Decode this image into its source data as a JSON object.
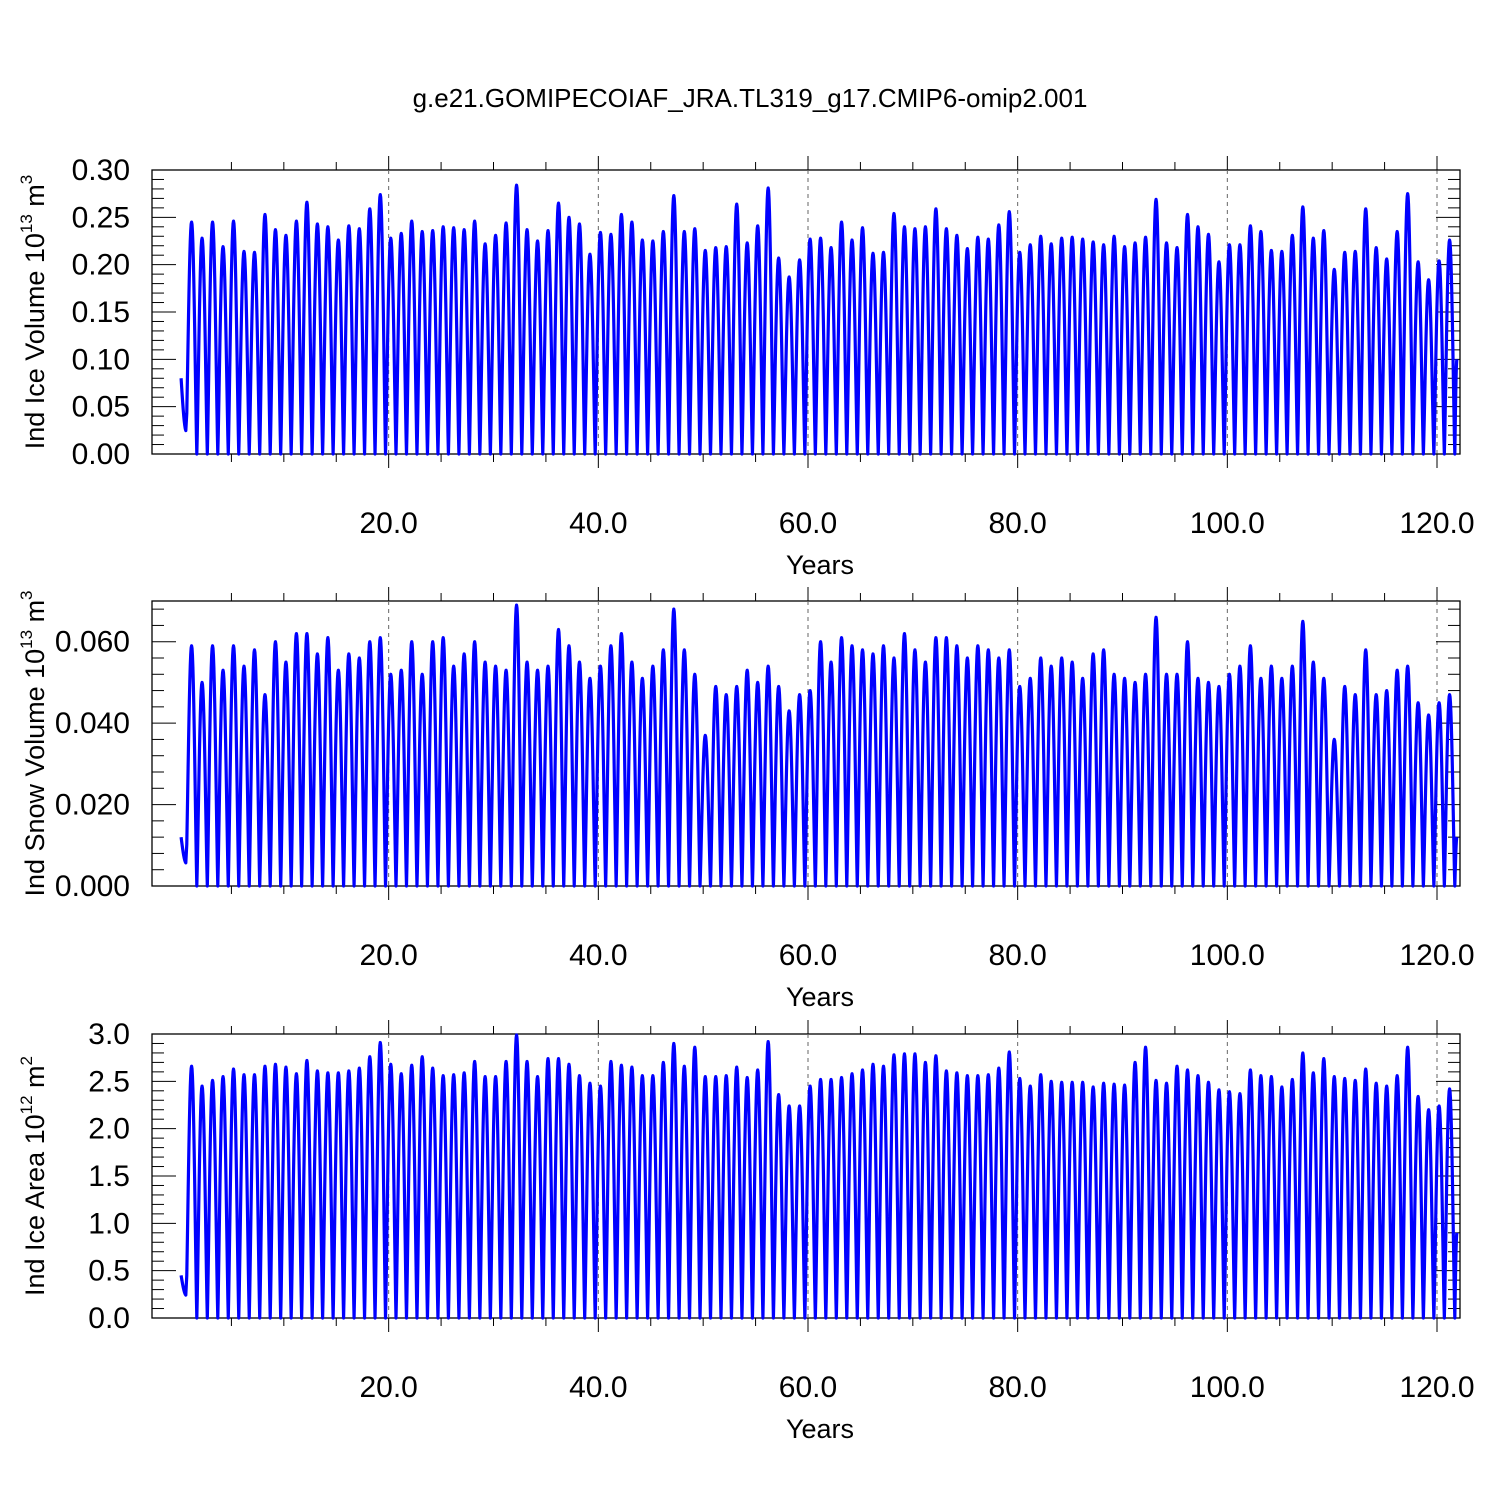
{
  "title": "g.e21.GOMIPECOIAF_JRA.TL319_g17.CMIP6-omip2.001",
  "line_color": "#0000ff",
  "chart_data": [
    {
      "type": "line",
      "title": "",
      "xlabel": "Years",
      "ylabel_main": "Ind Ice Volume 10",
      "ylabel_exp": "13",
      "ylabel_unit": " m",
      "ylabel_unit_exp": "3",
      "xlim": [
        0,
        122
      ],
      "ylim": [
        0,
        0.3
      ],
      "grid": "dashed vertical lines at major x ticks",
      "xticks": [
        20,
        40,
        60,
        80,
        100,
        120
      ],
      "xtick_labels": [
        "20.0",
        "40.0",
        "60.0",
        "80.0",
        "100.0",
        "120.0"
      ],
      "yticks": [
        0,
        0.05,
        0.1,
        0.15,
        0.2,
        0.25,
        0.3
      ],
      "ytick_labels": [
        "0.00",
        "0.05",
        "0.10",
        "0.15",
        "0.20",
        "0.25",
        "0.30"
      ],
      "series": [
        {
          "start_value": 0.08,
          "end_value": 0.1,
          "annual_minimum": 0.0,
          "annual_maxima": [
            0.245,
            0.228,
            0.245,
            0.219,
            0.246,
            0.214,
            0.213,
            0.253,
            0.237,
            0.231,
            0.246,
            0.266,
            0.243,
            0.24,
            0.226,
            0.241,
            0.238,
            0.259,
            0.274,
            0.228,
            0.233,
            0.246,
            0.235,
            0.236,
            0.24,
            0.239,
            0.237,
            0.246,
            0.222,
            0.231,
            0.244,
            0.284,
            0.237,
            0.225,
            0.236,
            0.265,
            0.25,
            0.243,
            0.211,
            0.234,
            0.232,
            0.253,
            0.245,
            0.226,
            0.225,
            0.235,
            0.273,
            0.235,
            0.238,
            0.215,
            0.218,
            0.219,
            0.264,
            0.223,
            0.241,
            0.281,
            0.207,
            0.187,
            0.205,
            0.227,
            0.228,
            0.218,
            0.245,
            0.226,
            0.239,
            0.212,
            0.213,
            0.254,
            0.24,
            0.238,
            0.24,
            0.259,
            0.238,
            0.231,
            0.217,
            0.229,
            0.227,
            0.242,
            0.256,
            0.213,
            0.221,
            0.23,
            0.222,
            0.228,
            0.229,
            0.227,
            0.224,
            0.221,
            0.23,
            0.219,
            0.223,
            0.229,
            0.269,
            0.223,
            0.218,
            0.253,
            0.24,
            0.232,
            0.203,
            0.221,
            0.221,
            0.241,
            0.235,
            0.215,
            0.214,
            0.231,
            0.261,
            0.228,
            0.236,
            0.195,
            0.213,
            0.214,
            0.259,
            0.218,
            0.206,
            0.235,
            0.275,
            0.203,
            0.184,
            0.204,
            0.226
          ]
        }
      ]
    },
    {
      "type": "line",
      "title": "",
      "xlabel": "Years",
      "ylabel_main": "Ind Snow Volume 10",
      "ylabel_exp": "13",
      "ylabel_unit": " m",
      "ylabel_unit_exp": "3",
      "xlim": [
        0,
        122
      ],
      "ylim": [
        0,
        0.07
      ],
      "grid": "dashed vertical lines at major x ticks",
      "xticks": [
        20,
        40,
        60,
        80,
        100,
        120
      ],
      "xtick_labels": [
        "20.0",
        "40.0",
        "60.0",
        "80.0",
        "100.0",
        "120.0"
      ],
      "yticks": [
        0,
        0.02,
        0.04,
        0.06
      ],
      "ytick_labels": [
        "0.000",
        "0.020",
        "0.040",
        "0.060"
      ],
      "series": [
        {
          "start_value": 0.012,
          "end_value": 0.012,
          "annual_minimum": 0.0,
          "annual_maxima": [
            0.059,
            0.05,
            0.059,
            0.053,
            0.059,
            0.054,
            0.058,
            0.047,
            0.06,
            0.055,
            0.062,
            0.062,
            0.057,
            0.061,
            0.053,
            0.057,
            0.056,
            0.06,
            0.061,
            0.052,
            0.053,
            0.06,
            0.052,
            0.06,
            0.061,
            0.054,
            0.057,
            0.06,
            0.055,
            0.054,
            0.053,
            0.069,
            0.055,
            0.053,
            0.054,
            0.063,
            0.059,
            0.055,
            0.051,
            0.054,
            0.059,
            0.062,
            0.055,
            0.051,
            0.054,
            0.058,
            0.068,
            0.058,
            0.052,
            0.037,
            0.049,
            0.047,
            0.049,
            0.053,
            0.05,
            0.054,
            0.049,
            0.043,
            0.047,
            0.048,
            0.06,
            0.055,
            0.061,
            0.059,
            0.058,
            0.057,
            0.059,
            0.056,
            0.062,
            0.058,
            0.055,
            0.061,
            0.061,
            0.059,
            0.056,
            0.059,
            0.058,
            0.056,
            0.058,
            0.049,
            0.051,
            0.056,
            0.054,
            0.056,
            0.055,
            0.051,
            0.057,
            0.058,
            0.052,
            0.051,
            0.05,
            0.052,
            0.066,
            0.052,
            0.052,
            0.06,
            0.051,
            0.05,
            0.049,
            0.052,
            0.054,
            0.059,
            0.051,
            0.054,
            0.051,
            0.054,
            0.065,
            0.055,
            0.051,
            0.036,
            0.049,
            0.047,
            0.058,
            0.047,
            0.048,
            0.053,
            0.054,
            0.045,
            0.042,
            0.045,
            0.047
          ]
        }
      ]
    },
    {
      "type": "line",
      "title": "",
      "xlabel": "Years",
      "ylabel_main": "Ind Ice Area 10",
      "ylabel_exp": "12",
      "ylabel_unit": " m",
      "ylabel_unit_exp": "2",
      "xlim": [
        0,
        122
      ],
      "ylim": [
        0,
        3.0
      ],
      "grid": "dashed vertical lines at major x ticks",
      "xticks": [
        20,
        40,
        60,
        80,
        100,
        120
      ],
      "xtick_labels": [
        "20.0",
        "40.0",
        "60.0",
        "80.0",
        "100.0",
        "120.0"
      ],
      "yticks": [
        0,
        0.5,
        1.0,
        1.5,
        2.0,
        2.5,
        3.0
      ],
      "ytick_labels": [
        "0.0",
        "0.5",
        "1.0",
        "1.5",
        "2.0",
        "2.5",
        "3.0"
      ],
      "series": [
        {
          "start_value": 0.45,
          "end_value": 0.9,
          "annual_minimum": 0.0,
          "annual_maxima": [
            2.66,
            2.45,
            2.51,
            2.55,
            2.63,
            2.57,
            2.57,
            2.66,
            2.68,
            2.65,
            2.58,
            2.72,
            2.61,
            2.59,
            2.59,
            2.61,
            2.64,
            2.76,
            2.91,
            2.68,
            2.58,
            2.67,
            2.76,
            2.64,
            2.56,
            2.57,
            2.59,
            2.71,
            2.55,
            2.55,
            2.71,
            2.99,
            2.71,
            2.55,
            2.74,
            2.74,
            2.68,
            2.56,
            2.48,
            2.45,
            2.71,
            2.67,
            2.65,
            2.56,
            2.56,
            2.7,
            2.9,
            2.66,
            2.86,
            2.55,
            2.55,
            2.56,
            2.65,
            2.54,
            2.62,
            2.92,
            2.36,
            2.24,
            2.24,
            2.45,
            2.52,
            2.52,
            2.54,
            2.58,
            2.62,
            2.68,
            2.66,
            2.78,
            2.79,
            2.79,
            2.7,
            2.77,
            2.61,
            2.59,
            2.56,
            2.56,
            2.57,
            2.64,
            2.81,
            2.53,
            2.45,
            2.57,
            2.5,
            2.49,
            2.49,
            2.49,
            2.44,
            2.48,
            2.47,
            2.46,
            2.7,
            2.86,
            2.51,
            2.48,
            2.66,
            2.62,
            2.56,
            2.49,
            2.41,
            2.39,
            2.37,
            2.62,
            2.56,
            2.55,
            2.44,
            2.52,
            2.8,
            2.59,
            2.74,
            2.55,
            2.53,
            2.51,
            2.63,
            2.48,
            2.45,
            2.56,
            2.86,
            2.34,
            2.2,
            2.24,
            2.42
          ]
        }
      ]
    }
  ]
}
